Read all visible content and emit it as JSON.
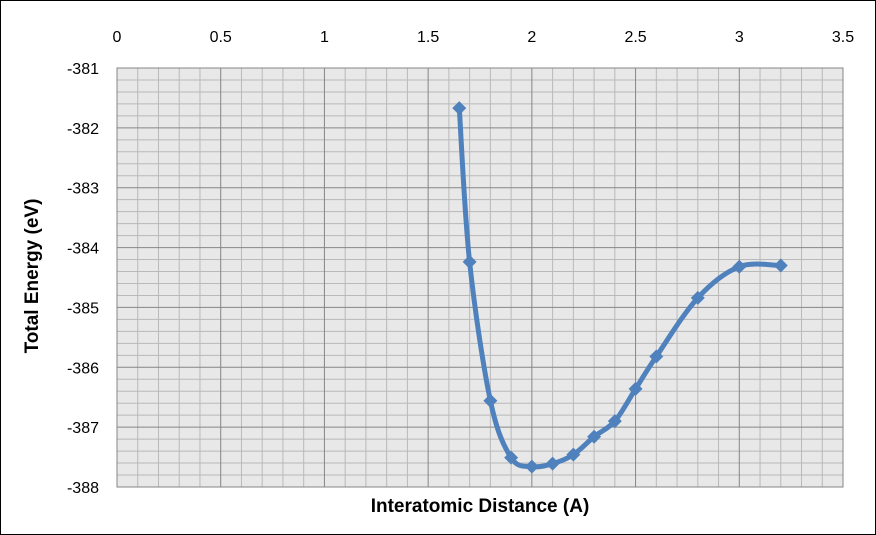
{
  "chart_data": {
    "type": "scatter",
    "title": "",
    "xlabel": "Interatomic Distance (A)",
    "ylabel": "Total Energy (eV)",
    "xlim": [
      0,
      3.5
    ],
    "ylim": [
      -388,
      -381
    ],
    "x_major_step": 0.5,
    "x_minor_step": 0.1,
    "y_major_step": 1,
    "y_minor_step": 0.2,
    "x_axis_position": "top",
    "x_tick_labels": [
      "0",
      "0.5",
      "1",
      "1.5",
      "2",
      "2.5",
      "3",
      "3.5"
    ],
    "y_tick_labels": [
      "-381",
      "-382",
      "-383",
      "-384",
      "-385",
      "-386",
      "-387",
      "-388"
    ],
    "grid": true,
    "legend": "none",
    "line_style": "smooth",
    "marker": "diamond",
    "series": [
      {
        "color": "#4F81BD",
        "points": [
          {
            "x": 1.65,
            "y": -381.67
          },
          {
            "x": 1.7,
            "y": -384.24
          },
          {
            "x": 1.8,
            "y": -386.56
          },
          {
            "x": 1.9,
            "y": -387.51
          },
          {
            "x": 2.0,
            "y": -387.66
          },
          {
            "x": 2.1,
            "y": -387.61
          },
          {
            "x": 2.2,
            "y": -387.46
          },
          {
            "x": 2.3,
            "y": -387.16
          },
          {
            "x": 2.4,
            "y": -386.9
          },
          {
            "x": 2.5,
            "y": -386.36
          },
          {
            "x": 2.6,
            "y": -385.82
          },
          {
            "x": 2.8,
            "y": -384.84
          },
          {
            "x": 3.0,
            "y": -384.32
          },
          {
            "x": 3.2,
            "y": -384.3
          }
        ]
      }
    ],
    "colors": {
      "plot_background": "#E8E8E8",
      "minor_grid": "#B9B9B9",
      "major_grid": "#868686",
      "axis_line": "#868686"
    }
  }
}
